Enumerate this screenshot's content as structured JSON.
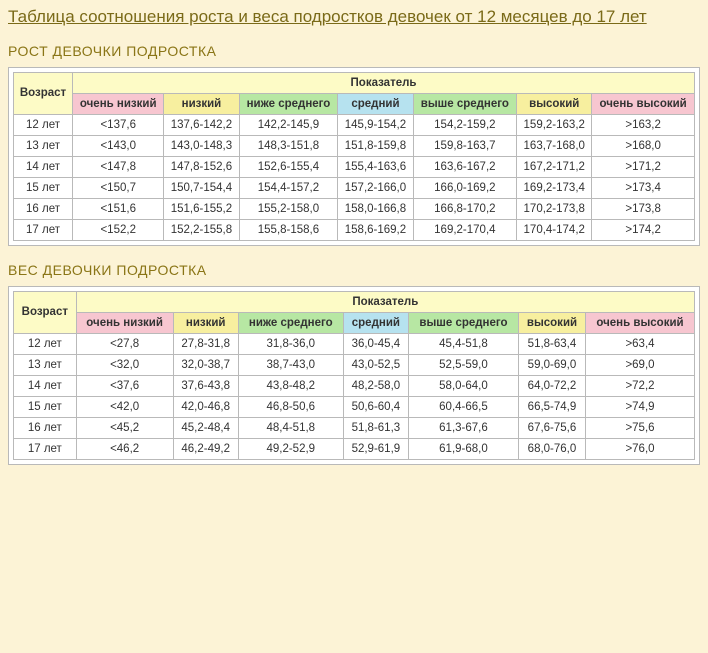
{
  "title": "Таблица соотношения роста и веса подростков девочек от 12 месяцев до 17 лет",
  "columns": {
    "over": "Показатель",
    "age": "Возраст",
    "very_low": "очень низкий",
    "low": "низкий",
    "below_avg": "ниже среднего",
    "avg": "средний",
    "above_avg": "выше среднего",
    "high": "высокий",
    "very_high": "очень высокий"
  },
  "tables": [
    {
      "heading": "РОСТ ДЕВОЧКИ ПОДРОСТКА",
      "rows": [
        {
          "age": "12 лет",
          "very_low": "<137,6",
          "low": "137,6-142,2",
          "below_avg": "142,2-145,9",
          "avg": "145,9-154,2",
          "above_avg": "154,2-159,2",
          "high": "159,2-163,2",
          "very_high": ">163,2"
        },
        {
          "age": "13 лет",
          "very_low": "<143,0",
          "low": "143,0-148,3",
          "below_avg": "148,3-151,8",
          "avg": "151,8-159,8",
          "above_avg": "159,8-163,7",
          "high": "163,7-168,0",
          "very_high": ">168,0"
        },
        {
          "age": "14 лет",
          "very_low": "<147,8",
          "low": "147,8-152,6",
          "below_avg": "152,6-155,4",
          "avg": "155,4-163,6",
          "above_avg": "163,6-167,2",
          "high": "167,2-171,2",
          "very_high": ">171,2"
        },
        {
          "age": "15 лет",
          "very_low": "<150,7",
          "low": "150,7-154,4",
          "below_avg": "154,4-157,2",
          "avg": "157,2-166,0",
          "above_avg": "166,0-169,2",
          "high": "169,2-173,4",
          "very_high": ">173,4"
        },
        {
          "age": "16 лет",
          "very_low": "<151,6",
          "low": "151,6-155,2",
          "below_avg": "155,2-158,0",
          "avg": "158,0-166,8",
          "above_avg": "166,8-170,2",
          "high": "170,2-173,8",
          "very_high": ">173,8"
        },
        {
          "age": "17 лет",
          "very_low": "<152,2",
          "low": "152,2-155,8",
          "below_avg": "155,8-158,6",
          "avg": "158,6-169,2",
          "above_avg": "169,2-170,4",
          "high": "170,4-174,2",
          "very_high": ">174,2"
        }
      ]
    },
    {
      "heading": "ВЕС ДЕВОЧКИ ПОДРОСТКА",
      "rows": [
        {
          "age": "12 лет",
          "very_low": "<27,8",
          "low": "27,8-31,8",
          "below_avg": "31,8-36,0",
          "avg": "36,0-45,4",
          "above_avg": "45,4-51,8",
          "high": "51,8-63,4",
          "very_high": ">63,4"
        },
        {
          "age": "13 лет",
          "very_low": "<32,0",
          "low": "32,0-38,7",
          "below_avg": "38,7-43,0",
          "avg": "43,0-52,5",
          "above_avg": "52,5-59,0",
          "high": "59,0-69,0",
          "very_high": ">69,0"
        },
        {
          "age": "14 лет",
          "very_low": "<37,6",
          "low": "37,6-43,8",
          "below_avg": "43,8-48,2",
          "avg": "48,2-58,0",
          "above_avg": "58,0-64,0",
          "high": "64,0-72,2",
          "very_high": ">72,2"
        },
        {
          "age": "15 лет",
          "very_low": "<42,0",
          "low": "42,0-46,8",
          "below_avg": "46,8-50,6",
          "avg": "50,6-60,4",
          "above_avg": "60,4-66,5",
          "high": "66,5-74,9",
          "very_high": ">74,9"
        },
        {
          "age": "16 лет",
          "very_low": "<45,2",
          "low": "45,2-48,4",
          "below_avg": "48,4-51,8",
          "avg": "51,8-61,3",
          "above_avg": "61,3-67,6",
          "high": "67,6-75,6",
          "very_high": ">75,6"
        },
        {
          "age": "17 лет",
          "very_low": "<46,2",
          "low": "46,2-49,2",
          "below_avg": "49,2-52,9",
          "avg": "52,9-61,9",
          "above_avg": "61,9-68,0",
          "high": "68,0-76,0",
          "very_high": ">76,0"
        }
      ]
    }
  ]
}
